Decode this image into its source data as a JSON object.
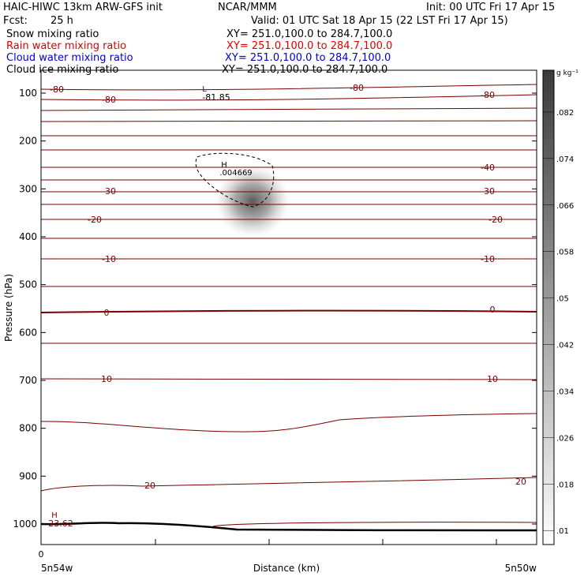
{
  "header": {
    "title": "HAIC-HIWC 13km ARW-GFS init",
    "org": "NCAR/MMM",
    "init": "Init: 00 UTC Fri 17 Apr 15",
    "fcst_label": "Fcst:",
    "fcst_value": "25 h",
    "valid": "Valid: 01 UTC Sat 18 Apr 15 (22 LST Fri 17 Apr 15)"
  },
  "fields": [
    {
      "name": "Snow mixing ratio",
      "xy": "XY= 251.0,100.0 to 284.7,100.0",
      "color": "#000000"
    },
    {
      "name": "Rain water mixing ratio",
      "xy": "XY= 251.0,100.0 to 284.7,100.0",
      "color": "#e00000"
    },
    {
      "name": "Cloud water mixing ratio",
      "xy": "XY= 251.0,100.0 to 284.7,100.0",
      "color": "#0000cc"
    },
    {
      "name": "Cloud ice mixing ratio",
      "xy": "XY= 251.0,100.0 to 284.7,100.0",
      "color": "#000000"
    }
  ],
  "chart_data": {
    "type": "heatmap",
    "ylabel": "Pressure (hPa)",
    "xlabel": "Distance (km)",
    "x_left_label": "5n54w",
    "x_right_label": "5n50w",
    "x_origin_label": "0",
    "yticks": [
      100,
      200,
      300,
      400,
      500,
      600,
      700,
      800,
      900,
      1000
    ],
    "ylim": [
      1050,
      60
    ],
    "colorbar": {
      "unit": "g kg⁻¹",
      "levels": [
        ".01",
        ".018",
        ".026",
        ".034",
        ".042",
        ".05",
        ".058",
        ".066",
        ".074",
        ".082"
      ]
    },
    "temperature_labels": [
      "-80",
      "-81.85",
      "-40",
      "-30",
      "-20",
      "-10",
      "0",
      "10",
      "20",
      "23.62"
    ],
    "low_marker": "L",
    "high_marker": "H",
    "max_value_label": ".004669",
    "max_marker": "H"
  }
}
